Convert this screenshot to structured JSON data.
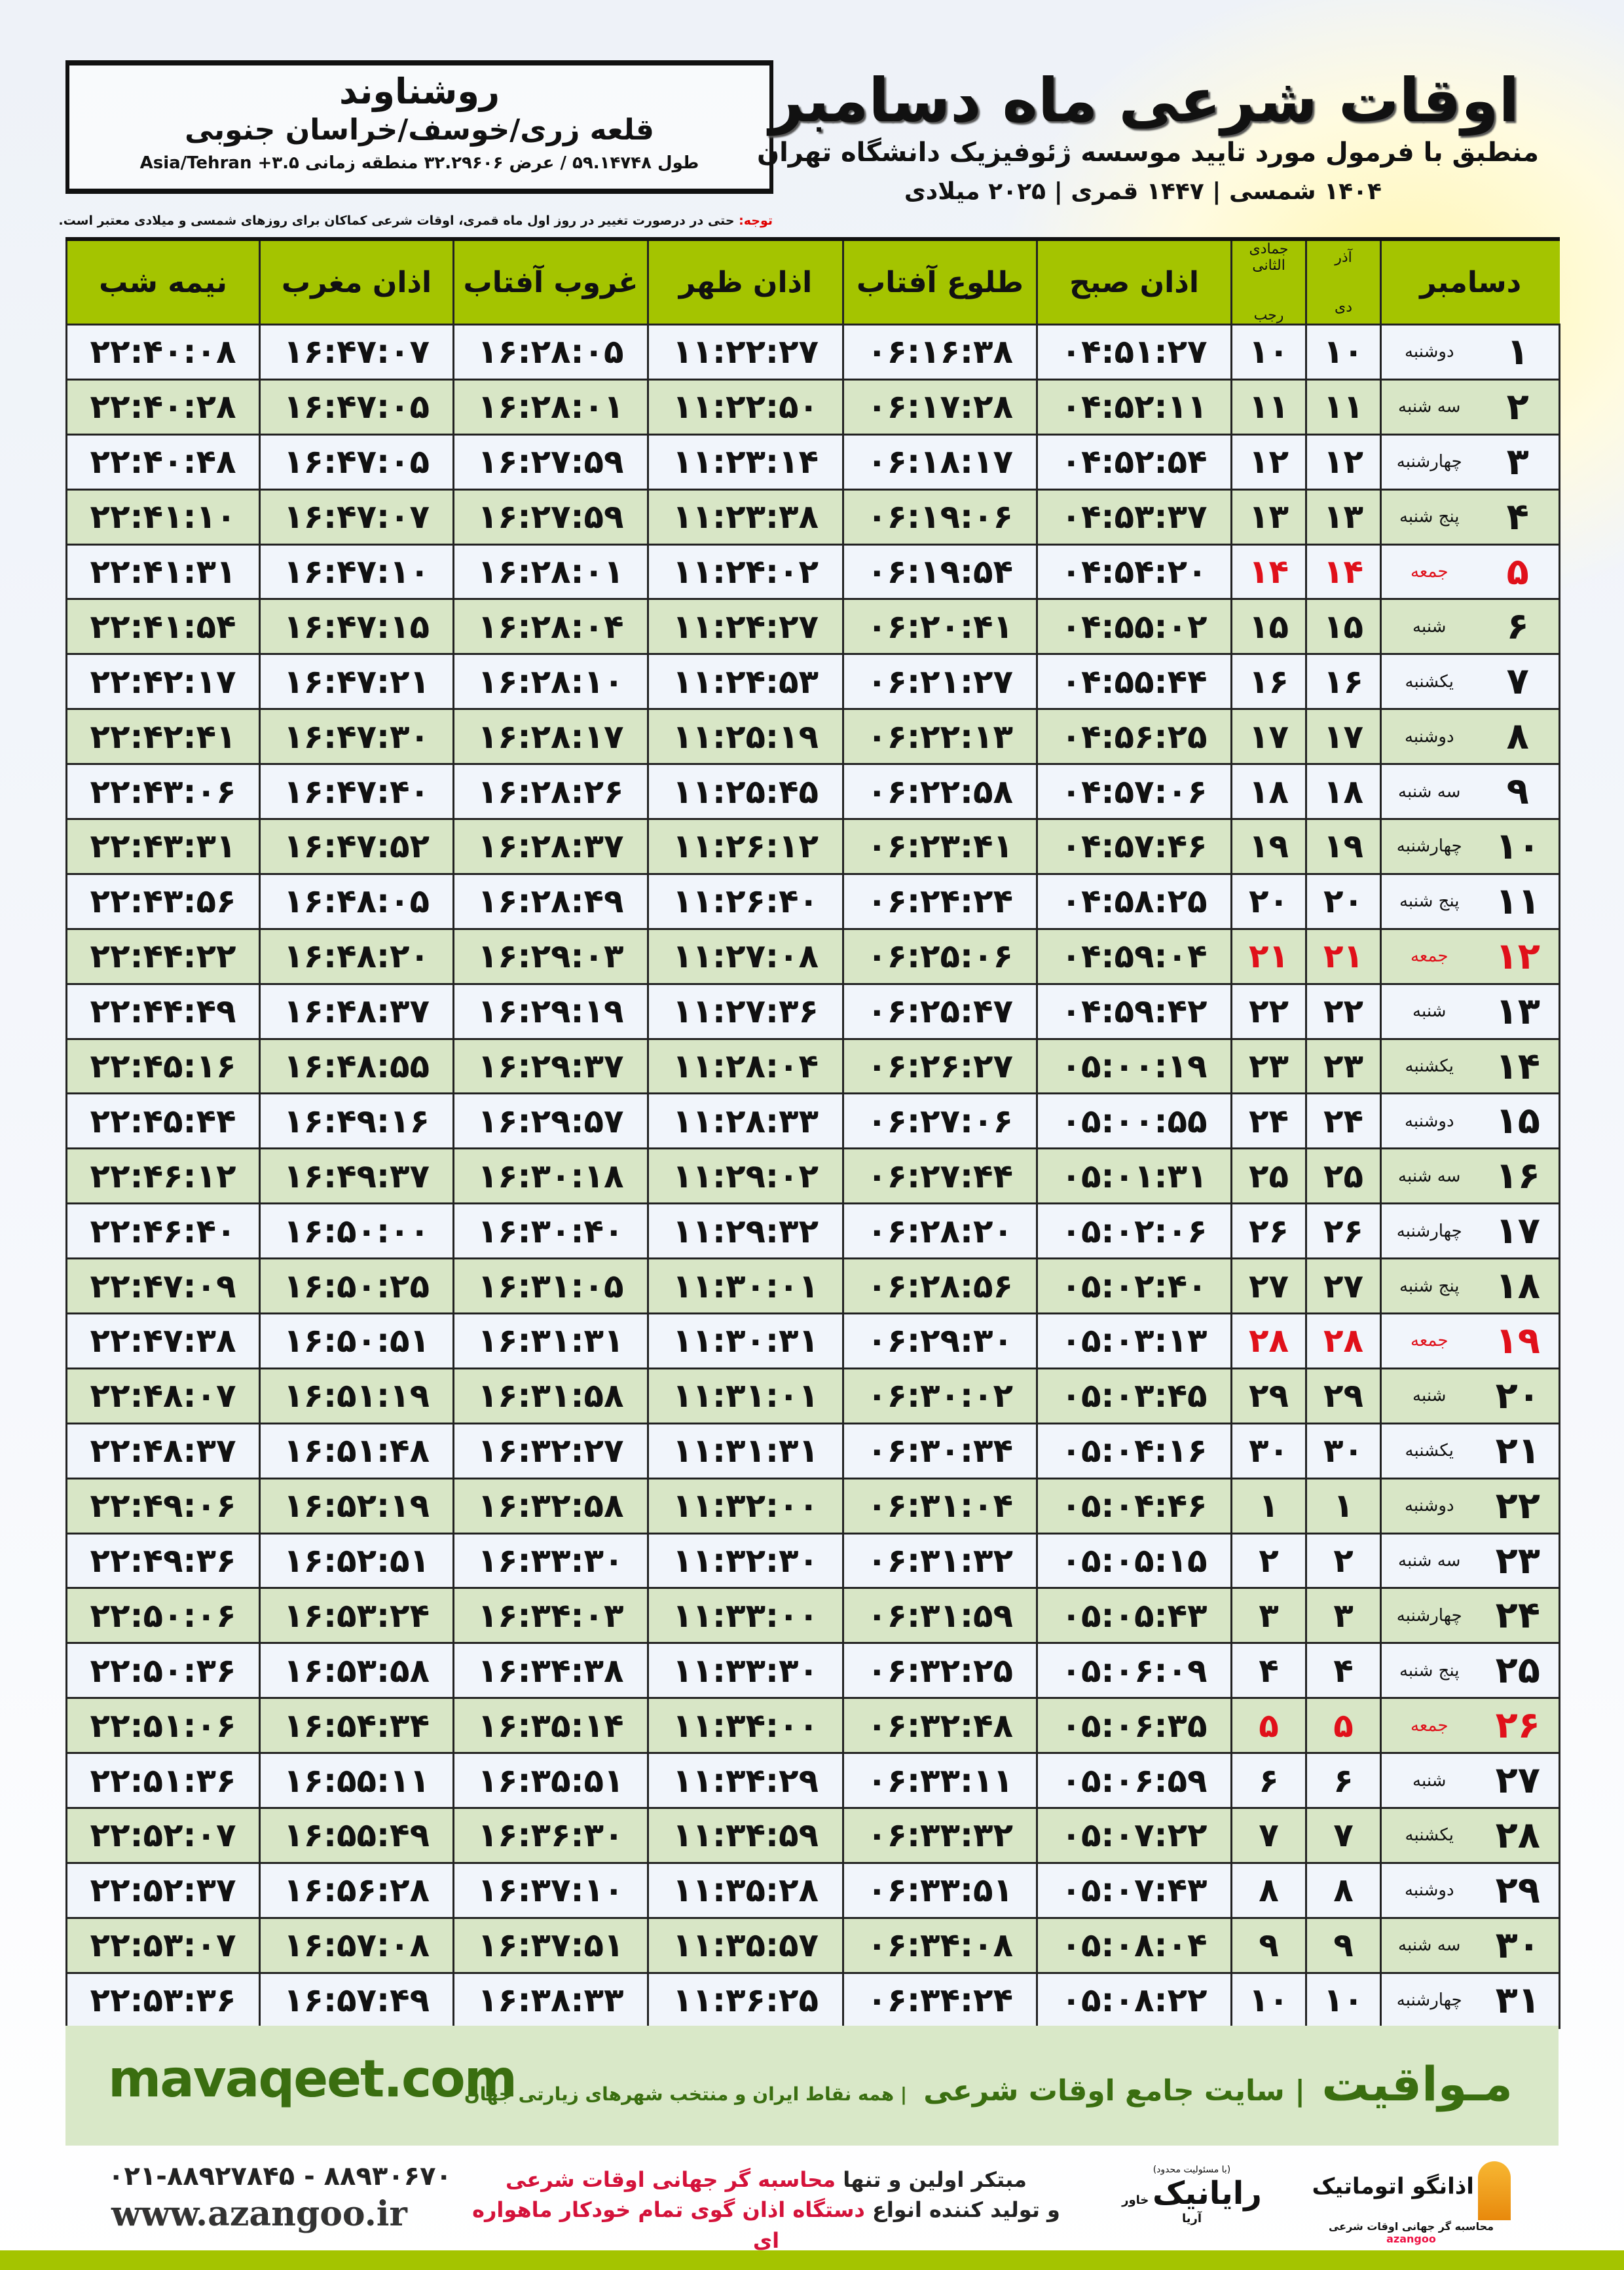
{
  "location": {
    "city": "روشناوند",
    "region": "قلعه زری/خوسف/خراسان جنوبی",
    "coords": "طول ۵۹.۱۴۷۴۸ / عرض ۳۲.۲۹۶۰۶ منطقه زمانی Asia/Tehran +۳.۵"
  },
  "header": {
    "title": "اوقات شرعی ماه دسامبر",
    "subtitle": "منطبق با فرمول مورد تایید موسسه ژئوفیزیک دانشگاه تهران",
    "dates": "۱۴۰۴ شمسی | ۱۴۴۷ قمری | ۲۰۲۵ میلادی"
  },
  "note": {
    "label": "توجه:",
    "text": " حتی در درصورت تغییر در روز اول ماه قمری، اوقات شرعی کماکان برای روزهای شمسی و میلادی معتبر است."
  },
  "columns": {
    "month": "دسامبر",
    "shamsi_top": "آذر",
    "shamsi": "دی",
    "hijri_top": "جمادی الثانی",
    "hijri": "رجب",
    "fajr": "اذان صبح",
    "sunrise": "طلوع آفتاب",
    "dhuhr": "اذان ظهر",
    "sunset": "غروب آفتاب",
    "maghrib": "اذان مغرب",
    "midnight": "نیمه شب"
  },
  "colors": {
    "header_green": "#a4c400",
    "row_green": "#d8e6c6",
    "friday_red": "#e0101a"
  },
  "rows": [
    [
      "۱",
      "دوشنبه",
      "۱۰",
      "۱۰",
      "۰۴:۵۱:۲۷",
      "۰۶:۱۶:۳۸",
      "۱۱:۲۲:۲۷",
      "۱۶:۲۸:۰۵",
      "۱۶:۴۷:۰۷",
      "۲۲:۴۰:۰۸"
    ],
    [
      "۲",
      "سه شنبه",
      "۱۱",
      "۱۱",
      "۰۴:۵۲:۱۱",
      "۰۶:۱۷:۲۸",
      "۱۱:۲۲:۵۰",
      "۱۶:۲۸:۰۱",
      "۱۶:۴۷:۰۵",
      "۲۲:۴۰:۲۸"
    ],
    [
      "۳",
      "چهارشنبه",
      "۱۲",
      "۱۲",
      "۰۴:۵۲:۵۴",
      "۰۶:۱۸:۱۷",
      "۱۱:۲۳:۱۴",
      "۱۶:۲۷:۵۹",
      "۱۶:۴۷:۰۵",
      "۲۲:۴۰:۴۸"
    ],
    [
      "۴",
      "پنج شنبه",
      "۱۳",
      "۱۳",
      "۰۴:۵۳:۳۷",
      "۰۶:۱۹:۰۶",
      "۱۱:۲۳:۳۸",
      "۱۶:۲۷:۵۹",
      "۱۶:۴۷:۰۷",
      "۲۲:۴۱:۱۰"
    ],
    [
      "۵",
      "جمعه",
      "۱۴",
      "۱۴",
      "۰۴:۵۴:۲۰",
      "۰۶:۱۹:۵۴",
      "۱۱:۲۴:۰۲",
      "۱۶:۲۸:۰۱",
      "۱۶:۴۷:۱۰",
      "۲۲:۴۱:۳۱"
    ],
    [
      "۶",
      "شنبه",
      "۱۵",
      "۱۵",
      "۰۴:۵۵:۰۲",
      "۰۶:۲۰:۴۱",
      "۱۱:۲۴:۲۷",
      "۱۶:۲۸:۰۴",
      "۱۶:۴۷:۱۵",
      "۲۲:۴۱:۵۴"
    ],
    [
      "۷",
      "یکشنبه",
      "۱۶",
      "۱۶",
      "۰۴:۵۵:۴۴",
      "۰۶:۲۱:۲۷",
      "۱۱:۲۴:۵۳",
      "۱۶:۲۸:۱۰",
      "۱۶:۴۷:۲۱",
      "۲۲:۴۲:۱۷"
    ],
    [
      "۸",
      "دوشنبه",
      "۱۷",
      "۱۷",
      "۰۴:۵۶:۲۵",
      "۰۶:۲۲:۱۳",
      "۱۱:۲۵:۱۹",
      "۱۶:۲۸:۱۷",
      "۱۶:۴۷:۳۰",
      "۲۲:۴۲:۴۱"
    ],
    [
      "۹",
      "سه شنبه",
      "۱۸",
      "۱۸",
      "۰۴:۵۷:۰۶",
      "۰۶:۲۲:۵۸",
      "۱۱:۲۵:۴۵",
      "۱۶:۲۸:۲۶",
      "۱۶:۴۷:۴۰",
      "۲۲:۴۳:۰۶"
    ],
    [
      "۱۰",
      "چهارشنبه",
      "۱۹",
      "۱۹",
      "۰۴:۵۷:۴۶",
      "۰۶:۲۳:۴۱",
      "۱۱:۲۶:۱۲",
      "۱۶:۲۸:۳۷",
      "۱۶:۴۷:۵۲",
      "۲۲:۴۳:۳۱"
    ],
    [
      "۱۱",
      "پنج شنبه",
      "۲۰",
      "۲۰",
      "۰۴:۵۸:۲۵",
      "۰۶:۲۴:۲۴",
      "۱۱:۲۶:۴۰",
      "۱۶:۲۸:۴۹",
      "۱۶:۴۸:۰۵",
      "۲۲:۴۳:۵۶"
    ],
    [
      "۱۲",
      "جمعه",
      "۲۱",
      "۲۱",
      "۰۴:۵۹:۰۴",
      "۰۶:۲۵:۰۶",
      "۱۱:۲۷:۰۸",
      "۱۶:۲۹:۰۳",
      "۱۶:۴۸:۲۰",
      "۲۲:۴۴:۲۲"
    ],
    [
      "۱۳",
      "شنبه",
      "۲۲",
      "۲۲",
      "۰۴:۵۹:۴۲",
      "۰۶:۲۵:۴۷",
      "۱۱:۲۷:۳۶",
      "۱۶:۲۹:۱۹",
      "۱۶:۴۸:۳۷",
      "۲۲:۴۴:۴۹"
    ],
    [
      "۱۴",
      "یکشنبه",
      "۲۳",
      "۲۳",
      "۰۵:۰۰:۱۹",
      "۰۶:۲۶:۲۷",
      "۱۱:۲۸:۰۴",
      "۱۶:۲۹:۳۷",
      "۱۶:۴۸:۵۵",
      "۲۲:۴۵:۱۶"
    ],
    [
      "۱۵",
      "دوشنبه",
      "۲۴",
      "۲۴",
      "۰۵:۰۰:۵۵",
      "۰۶:۲۷:۰۶",
      "۱۱:۲۸:۳۳",
      "۱۶:۲۹:۵۷",
      "۱۶:۴۹:۱۶",
      "۲۲:۴۵:۴۴"
    ],
    [
      "۱۶",
      "سه شنبه",
      "۲۵",
      "۲۵",
      "۰۵:۰۱:۳۱",
      "۰۶:۲۷:۴۴",
      "۱۱:۲۹:۰۲",
      "۱۶:۳۰:۱۸",
      "۱۶:۴۹:۳۷",
      "۲۲:۴۶:۱۲"
    ],
    [
      "۱۷",
      "چهارشنبه",
      "۲۶",
      "۲۶",
      "۰۵:۰۲:۰۶",
      "۰۶:۲۸:۲۰",
      "۱۱:۲۹:۳۲",
      "۱۶:۳۰:۴۰",
      "۱۶:۵۰:۰۰",
      "۲۲:۴۶:۴۰"
    ],
    [
      "۱۸",
      "پنج شنبه",
      "۲۷",
      "۲۷",
      "۰۵:۰۲:۴۰",
      "۰۶:۲۸:۵۶",
      "۱۱:۳۰:۰۱",
      "۱۶:۳۱:۰۵",
      "۱۶:۵۰:۲۵",
      "۲۲:۴۷:۰۹"
    ],
    [
      "۱۹",
      "جمعه",
      "۲۸",
      "۲۸",
      "۰۵:۰۳:۱۳",
      "۰۶:۲۹:۳۰",
      "۱۱:۳۰:۳۱",
      "۱۶:۳۱:۳۱",
      "۱۶:۵۰:۵۱",
      "۲۲:۴۷:۳۸"
    ],
    [
      "۲۰",
      "شنبه",
      "۲۹",
      "۲۹",
      "۰۵:۰۳:۴۵",
      "۰۶:۳۰:۰۲",
      "۱۱:۳۱:۰۱",
      "۱۶:۳۱:۵۸",
      "۱۶:۵۱:۱۹",
      "۲۲:۴۸:۰۷"
    ],
    [
      "۲۱",
      "یکشنبه",
      "۳۰",
      "۳۰",
      "۰۵:۰۴:۱۶",
      "۰۶:۳۰:۳۴",
      "۱۱:۳۱:۳۱",
      "۱۶:۳۲:۲۷",
      "۱۶:۵۱:۴۸",
      "۲۲:۴۸:۳۷"
    ],
    [
      "۲۲",
      "دوشنبه",
      "۱",
      "۱",
      "۰۵:۰۴:۴۶",
      "۰۶:۳۱:۰۴",
      "۱۱:۳۲:۰۰",
      "۱۶:۳۲:۵۸",
      "۱۶:۵۲:۱۹",
      "۲۲:۴۹:۰۶"
    ],
    [
      "۲۳",
      "سه شنبه",
      "۲",
      "۲",
      "۰۵:۰۵:۱۵",
      "۰۶:۳۱:۳۲",
      "۱۱:۳۲:۳۰",
      "۱۶:۳۳:۳۰",
      "۱۶:۵۲:۵۱",
      "۲۲:۴۹:۳۶"
    ],
    [
      "۲۴",
      "چهارشنبه",
      "۳",
      "۳",
      "۰۵:۰۵:۴۳",
      "۰۶:۳۱:۵۹",
      "۱۱:۳۳:۰۰",
      "۱۶:۳۴:۰۳",
      "۱۶:۵۳:۲۴",
      "۲۲:۵۰:۰۶"
    ],
    [
      "۲۵",
      "پنج شنبه",
      "۴",
      "۴",
      "۰۵:۰۶:۰۹",
      "۰۶:۳۲:۲۵",
      "۱۱:۳۳:۳۰",
      "۱۶:۳۴:۳۸",
      "۱۶:۵۳:۵۸",
      "۲۲:۵۰:۳۶"
    ],
    [
      "۲۶",
      "جمعه",
      "۵",
      "۵",
      "۰۵:۰۶:۳۵",
      "۰۶:۳۲:۴۸",
      "۱۱:۳۴:۰۰",
      "۱۶:۳۵:۱۴",
      "۱۶:۵۴:۳۴",
      "۲۲:۵۱:۰۶"
    ],
    [
      "۲۷",
      "شنبه",
      "۶",
      "۶",
      "۰۵:۰۶:۵۹",
      "۰۶:۳۳:۱۱",
      "۱۱:۳۴:۲۹",
      "۱۶:۳۵:۵۱",
      "۱۶:۵۵:۱۱",
      "۲۲:۵۱:۳۶"
    ],
    [
      "۲۸",
      "یکشنبه",
      "۷",
      "۷",
      "۰۵:۰۷:۲۲",
      "۰۶:۳۳:۳۲",
      "۱۱:۳۴:۵۹",
      "۱۶:۳۶:۳۰",
      "۱۶:۵۵:۴۹",
      "۲۲:۵۲:۰۷"
    ],
    [
      "۲۹",
      "دوشنبه",
      "۸",
      "۸",
      "۰۵:۰۷:۴۳",
      "۰۶:۳۳:۵۱",
      "۱۱:۳۵:۲۸",
      "۱۶:۳۷:۱۰",
      "۱۶:۵۶:۲۸",
      "۲۲:۵۲:۳۷"
    ],
    [
      "۳۰",
      "سه شنبه",
      "۹",
      "۹",
      "۰۵:۰۸:۰۴",
      "۰۶:۳۴:۰۸",
      "۱۱:۳۵:۵۷",
      "۱۶:۳۷:۵۱",
      "۱۶:۵۷:۰۸",
      "۲۲:۵۳:۰۷"
    ],
    [
      "۳۱",
      "چهارشنبه",
      "۱۰",
      "۱۰",
      "۰۵:۰۸:۲۲",
      "۰۶:۳۴:۲۴",
      "۱۱:۳۶:۲۵",
      "۱۶:۳۸:۳۳",
      "۱۶:۵۷:۴۹",
      "۲۲:۵۳:۳۶"
    ]
  ],
  "banner": {
    "site": "mavaqeet.com",
    "brand": "مـواقیت",
    "slogan": "| سایت جامع اوقات شرعی",
    "sub": "| همه نقاط ایران و منتخب شهرهای زیارتی جهان"
  },
  "footer": {
    "phone": "۰۲۱-۸۸۹۲۷۸۴۵ - ۸۸۹۳۰۶۷۰",
    "web": "www.azangoo.ir",
    "line1_a": "مبتکر اولین و تنها ",
    "line1_b": "محاسبه گر جهانی اوقات شرعی",
    "line2_a": "و تولید کننده انواع ",
    "line2_b": "دستگاه اذان گوی تمام خودکار ماهواره ای",
    "logo1_small": "(با مسئولیت محدود)",
    "logo1": "رایانیک",
    "logo1_side": "خاور آریا",
    "logo2": "اذانگو اتوماتیک",
    "logo2_sub": "محاسبه گر جهانی اوقات شرعی",
    "logo2_en": "azangoo"
  }
}
